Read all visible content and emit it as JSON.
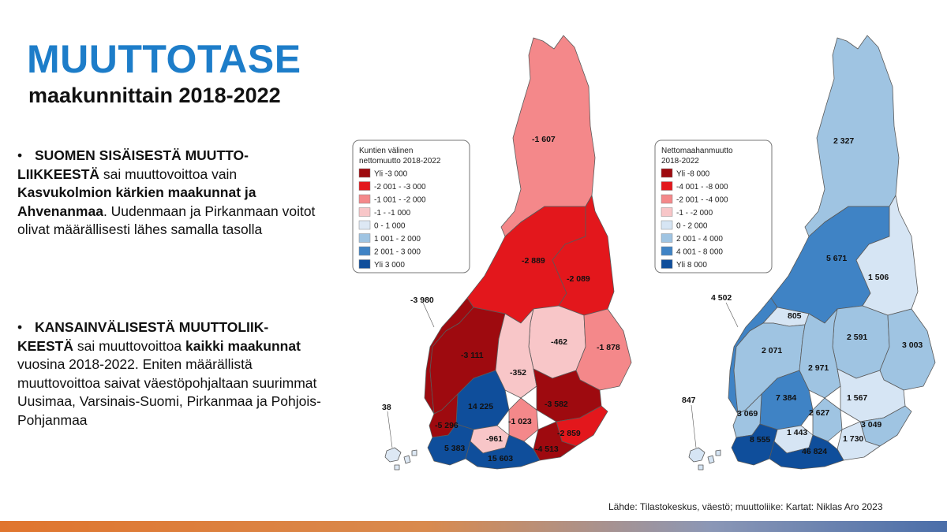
{
  "title": "MUUTTOTASE",
  "subtitle": "maakunnittain 2018-2022",
  "bullets": [
    {
      "parts": [
        {
          "text": "SUOMEN SISÄISESTÄ MUUTTO-LIIKKEESTÄ",
          "bold": true
        },
        {
          "text": " sai muuttovoittoa vain ",
          "bold": false
        },
        {
          "text": "Kasvukolmion kärkien maakunnat ja Ahvenanmaa",
          "bold": true
        },
        {
          "text": ". Uudenmaan ja Pirkanmaan voitot olivat määrällisesti lähes samalla tasolla",
          "bold": false
        }
      ]
    },
    {
      "parts": [
        {
          "text": "KANSAINVÄLISESTÄ MUUTTOLIIK-KEESTÄ",
          "bold": true
        },
        {
          "text": " sai muuttovoittoa ",
          "bold": false
        },
        {
          "text": "kaikki maakunnat",
          "bold": true
        },
        {
          "text": " vuosina 2018-2022. Eniten määrällistä muuttovoittoa saivat väestöpohjaltaan suurimmat Uusimaa, Varsinais-Suomi, Pirkanmaa ja Pohjois-Pohjanmaa",
          "bold": false
        }
      ]
    }
  ],
  "map1": {
    "legend_title_1": "Kuntien välinen",
    "legend_title_2": "nettomuutto 2018-2022",
    "legend": [
      {
        "label": "Yli -3 000",
        "color": "#9e0a0f"
      },
      {
        "label": "-2 001 - -3 000",
        "color": "#e3171c"
      },
      {
        "label": "-1 001 - -2 000",
        "color": "#f4888a"
      },
      {
        "label": "-1 - -1 000",
        "color": "#f8c6c8"
      },
      {
        "label": "0 - 1 000",
        "color": "#dde8f4"
      },
      {
        "label": "1 001 - 2 000",
        "color": "#9fc4e2"
      },
      {
        "label": "2 001 - 3 000",
        "color": "#3f83c5"
      },
      {
        "label": "Yli 3 000",
        "color": "#0f4e9b"
      }
    ],
    "regions": [
      {
        "name": "Lappi",
        "value": "-1 607",
        "color": "#f4888a"
      },
      {
        "name": "Pohjois-Pohjanmaa",
        "value": "-2 889",
        "color": "#e3171c"
      },
      {
        "name": "Kainuu",
        "value": "-2 089",
        "color": "#e3171c"
      },
      {
        "name": "Pohjanmaa",
        "value": "-3 980",
        "color": "#9e0a0f"
      },
      {
        "name": "Etelä-Pohjanmaa",
        "value": "-3 111",
        "color": "#9e0a0f"
      },
      {
        "name": "Pohjois-Savo",
        "value": "-462",
        "color": "#f8c6c8"
      },
      {
        "name": "Pohjois-Karjala",
        "value": "-1 878",
        "color": "#f4888a"
      },
      {
        "name": "Keski-Suomi",
        "value": "-352",
        "color": "#f8c6c8"
      },
      {
        "name": "Pirkanmaa",
        "value": "14 225",
        "color": "#0f4e9b"
      },
      {
        "name": "Etelä-Savo",
        "value": "-3 582",
        "color": "#9e0a0f"
      },
      {
        "name": "Satakunta",
        "value": "-5 296",
        "color": "#9e0a0f"
      },
      {
        "name": "Päijät-Häme",
        "value": "-1 023",
        "color": "#f4888a"
      },
      {
        "name": "Kanta-Häme",
        "value": "-961",
        "color": "#f8c6c8"
      },
      {
        "name": "Etelä-Karjala",
        "value": "-2 859",
        "color": "#e3171c"
      },
      {
        "name": "Varsinais-Suomi",
        "value": "5 383",
        "color": "#0f4e9b"
      },
      {
        "name": "Uusimaa",
        "value": "15 603",
        "color": "#0f4e9b"
      },
      {
        "name": "Kymenlaakso",
        "value": "-4 513",
        "color": "#9e0a0f"
      },
      {
        "name": "Ahvenanmaa",
        "value": "38",
        "color": "#dde8f4"
      }
    ]
  },
  "map2": {
    "legend_title_1": "Nettomaahanmuutto",
    "legend_title_2": "2018-2022",
    "legend": [
      {
        "label": "Yli -8 000",
        "color": "#9e0a0f"
      },
      {
        "label": "-4 001 - -8 000",
        "color": "#e3171c"
      },
      {
        "label": "-2 001 - -4 000",
        "color": "#f4888a"
      },
      {
        "label": "-1 - -2 000",
        "color": "#f8c6c8"
      },
      {
        "label": "0 - 2 000",
        "color": "#d6e5f4"
      },
      {
        "label": "2 001 - 4 000",
        "color": "#9fc4e2"
      },
      {
        "label": "4 001 - 8 000",
        "color": "#3f83c5"
      },
      {
        "label": "Yli 8 000",
        "color": "#0f4e9b"
      }
    ],
    "regions": [
      {
        "name": "Lappi",
        "value": "2 327",
        "color": "#9fc4e2"
      },
      {
        "name": "Pohjois-Pohjanmaa",
        "value": "5 671",
        "color": "#3f83c5"
      },
      {
        "name": "Kainuu",
        "value": "1 506",
        "color": "#d6e5f4"
      },
      {
        "name": "Pohjanmaa",
        "value": "4 502",
        "color": "#3f83c5"
      },
      {
        "name": "Keski-Pohjanmaa",
        "value": "805",
        "color": "#d6e5f4"
      },
      {
        "name": "Etelä-Pohjanmaa",
        "value": "2 071",
        "color": "#9fc4e2"
      },
      {
        "name": "Pohjois-Savo",
        "value": "2 591",
        "color": "#9fc4e2"
      },
      {
        "name": "Pohjois-Karjala",
        "value": "3 003",
        "color": "#9fc4e2"
      },
      {
        "name": "Keski-Suomi",
        "value": "2 971",
        "color": "#9fc4e2"
      },
      {
        "name": "Pirkanmaa",
        "value": "7 384",
        "color": "#3f83c5"
      },
      {
        "name": "Etelä-Savo",
        "value": "1 567",
        "color": "#d6e5f4"
      },
      {
        "name": "Satakunta",
        "value": "3 069",
        "color": "#9fc4e2"
      },
      {
        "name": "Päijät-Häme",
        "value": "2 627",
        "color": "#9fc4e2"
      },
      {
        "name": "Etelä-Karjala",
        "value": "3 049",
        "color": "#9fc4e2"
      },
      {
        "name": "Kanta-Häme",
        "value": "1 443",
        "color": "#d6e5f4"
      },
      {
        "name": "Kymenlaakso",
        "value": "1 730",
        "color": "#d6e5f4"
      },
      {
        "name": "Varsinais-Suomi",
        "value": "8 555",
        "color": "#0f4e9b"
      },
      {
        "name": "Uusimaa",
        "value": "46 824",
        "color": "#0f4e9b"
      },
      {
        "name": "Ahvenanmaa",
        "value": "847",
        "color": "#d6e5f4"
      }
    ]
  },
  "source": "Lähde: Tilastokeskus, väestö; muuttoliike:  Kartat: Niklas Aro 2023"
}
